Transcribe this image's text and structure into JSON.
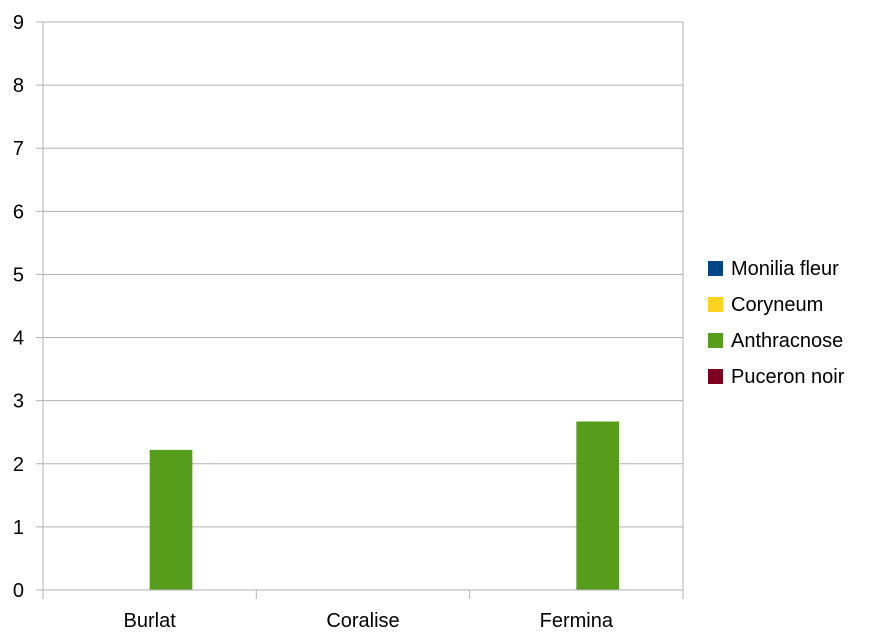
{
  "chart_data": {
    "type": "bar",
    "categories": [
      "Burlat",
      "Coralise",
      "Fermina"
    ],
    "series": [
      {
        "name": "Monilia fleur",
        "color": "#004586",
        "values": [
          0,
          0,
          0
        ]
      },
      {
        "name": "Coryneum",
        "color": "#ffd320",
        "values": [
          0,
          0,
          0
        ]
      },
      {
        "name": "Anthracnose",
        "color": "#579d1c",
        "values": [
          2.22,
          0,
          2.67
        ]
      },
      {
        "name": "Puceron noir",
        "color": "#7e0021",
        "values": [
          0,
          0,
          0
        ]
      }
    ],
    "ylim": [
      0,
      9
    ],
    "yticks": [
      "0",
      "1",
      "2",
      "3",
      "4",
      "5",
      "6",
      "7",
      "8",
      "9"
    ],
    "grid": true,
    "legend": "right"
  }
}
